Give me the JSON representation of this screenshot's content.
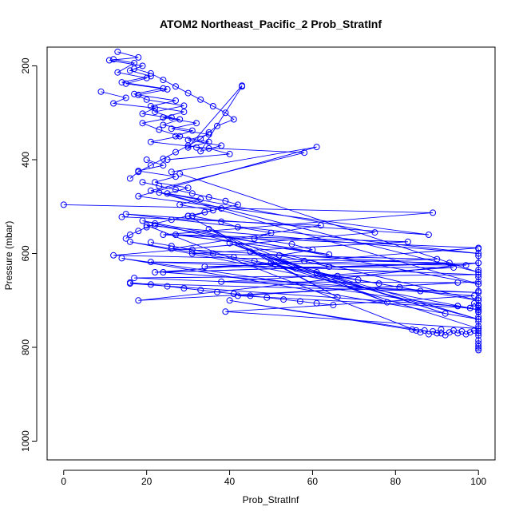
{
  "chart_data": {
    "type": "line",
    "title": "ATOM2 Northeast_Pacific_2 Prob_StratInf",
    "xlabel": "Prob_StratInf",
    "ylabel": "Pressure (mbar)",
    "xlim": [
      -4,
      104
    ],
    "ylim": [
      1040,
      160
    ],
    "y_reversed": true,
    "x_ticks": [
      0,
      20,
      40,
      60,
      80,
      100
    ],
    "y_ticks": [
      200,
      400,
      600,
      800,
      1000
    ],
    "grid": false,
    "color": "#0000ff",
    "series": [
      {
        "x": [
          13,
          18,
          11,
          19,
          16,
          21,
          14,
          24,
          17,
          20,
          29,
          22,
          26,
          19,
          23,
          28,
          21,
          35,
          40,
          25
        ],
        "y": [
          170,
          182,
          188,
          200,
          210,
          222,
          235,
          248,
          260,
          272,
          285,
          298,
          310,
          322,
          336,
          350,
          362,
          376,
          388,
          400
        ]
      },
      {
        "x": [
          20,
          24,
          18,
          27,
          22,
          30,
          25,
          33,
          28,
          36,
          31,
          38,
          42,
          50,
          46,
          55,
          60,
          52,
          58,
          64
        ],
        "y": [
          400,
          412,
          424,
          436,
          448,
          460,
          472,
          484,
          496,
          508,
          520,
          532,
          544,
          556,
          568,
          580,
          592,
          604,
          616,
          628
        ]
      },
      {
        "x": [
          9,
          15,
          12,
          22,
          19,
          28,
          24,
          31,
          27,
          35,
          30,
          43
        ],
        "y": [
          255,
          268,
          280,
          290,
          302,
          314,
          326,
          338,
          350,
          362,
          374,
          242
        ]
      },
      {
        "x": [
          0,
          89,
          24,
          100,
          22,
          100,
          18,
          100
        ],
        "y": [
          496,
          513,
          560,
          588,
          640,
          620,
          700,
          660
        ]
      },
      {
        "x": [
          14,
          62,
          26,
          97,
          21,
          100,
          17,
          100,
          16,
          95
        ],
        "y": [
          522,
          540,
          590,
          625,
          618,
          645,
          652,
          683,
          664,
          712
        ]
      },
      {
        "x": [
          32,
          58,
          21,
          75,
          12,
          93,
          24,
          99,
          39,
          100
        ],
        "y": [
          374,
          385,
          466,
          555,
          604,
          620,
          640,
          690,
          724,
          760
        ]
      },
      {
        "x": [
          26,
          61,
          18,
          88,
          15,
          100,
          20,
          85,
          40,
          91
        ],
        "y": [
          426,
          373,
          478,
          560,
          516,
          600,
          540,
          764,
          700,
          770
        ]
      },
      {
        "x": [
          28,
          100,
          23,
          100,
          19,
          100,
          16,
          100,
          14,
          100
        ],
        "y": [
          430,
          640,
          470,
          665,
          530,
          700,
          575,
          720,
          610,
          740
        ]
      },
      {
        "x": [
          22,
          64,
          27,
          83,
          31,
          90,
          34,
          94,
          38,
          95,
          42,
          98
        ],
        "y": [
          540,
          602,
          560,
          575,
          600,
          612,
          628,
          630,
          660,
          662,
          690,
          716
        ]
      },
      {
        "x": [
          30,
          66,
          35,
          78,
          40,
          92,
          45,
          100,
          50,
          100
        ],
        "y": [
          520,
          693,
          548,
          704,
          578,
          728,
          596,
          740,
          620,
          760
        ]
      },
      {
        "x": [
          84,
          86,
          87,
          88,
          89,
          90,
          91,
          92,
          93,
          94,
          95,
          96,
          97,
          98,
          99,
          100
        ],
        "y": [
          762,
          768,
          764,
          772,
          766,
          770,
          762,
          774,
          768,
          764,
          770,
          766,
          772,
          768,
          764,
          770
        ]
      },
      {
        "x": [
          100,
          100,
          100,
          100,
          100,
          100,
          100,
          100,
          100,
          100,
          100,
          100,
          100,
          100,
          100,
          100,
          100,
          100,
          100,
          100
        ],
        "y": [
          590,
          605,
          620,
          635,
          650,
          665,
          680,
          695,
          710,
          725,
          735,
          745,
          755,
          765,
          775,
          785,
          792,
          798,
          802,
          806
        ]
      },
      {
        "x": [
          95,
          98,
          99,
          100,
          100,
          100,
          100,
          100
        ],
        "y": [
          712,
          716,
          706,
          720,
          724,
          700,
          712,
          716
        ]
      },
      {
        "x": [
          12,
          17,
          13,
          20,
          15,
          25,
          18,
          27,
          21,
          29,
          24,
          32,
          26,
          35,
          30,
          38,
          33,
          43
        ],
        "y": [
          186,
          194,
          214,
          226,
          238,
          250,
          262,
          274,
          286,
          298,
          310,
          322,
          334,
          346,
          358,
          370,
          382,
          244
        ]
      },
      {
        "x": [
          17,
          21,
          24,
          27,
          30,
          33,
          36,
          39,
          41,
          37,
          35,
          33,
          30,
          27,
          24,
          21,
          18,
          16
        ],
        "y": [
          206,
          216,
          230,
          244,
          258,
          272,
          286,
          300,
          314,
          328,
          342,
          356,
          370,
          384,
          398,
          412,
          426,
          440
        ]
      },
      {
        "x": [
          19,
          23,
          27,
          31,
          35,
          39,
          42,
          38,
          34,
          30,
          26,
          22,
          20,
          18,
          16,
          15
        ],
        "y": [
          448,
          456,
          464,
          472,
          480,
          488,
          496,
          504,
          512,
          520,
          528,
          536,
          544,
          552,
          560,
          568
        ]
      },
      {
        "x": [
          21,
          26,
          31,
          36,
          41,
          46,
          51,
          56,
          61,
          66,
          71,
          76,
          81,
          86
        ],
        "y": [
          576,
          584,
          592,
          600,
          608,
          616,
          624,
          632,
          640,
          648,
          656,
          664,
          672,
          680
        ]
      },
      {
        "x": [
          16,
          21,
          25,
          29,
          33,
          37,
          41,
          45,
          49,
          53,
          57,
          61,
          65
        ],
        "y": [
          662,
          666,
          670,
          674,
          678,
          682,
          686,
          690,
          694,
          698,
          702,
          706,
          710
        ]
      }
    ]
  }
}
